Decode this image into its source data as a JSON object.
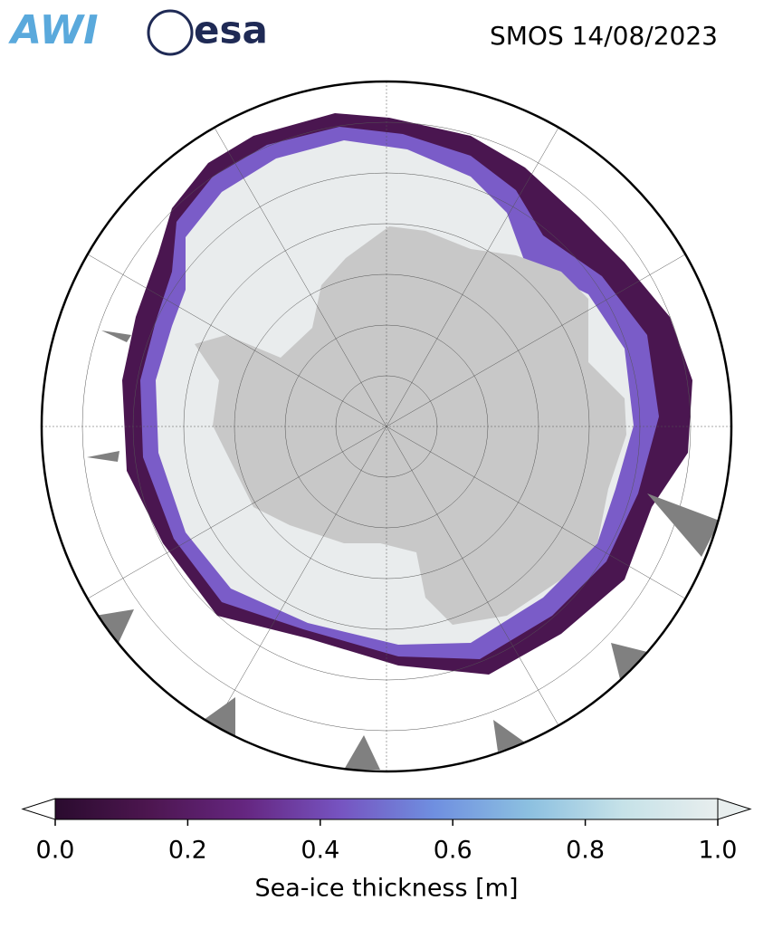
{
  "header": {
    "logos": [
      "AWI",
      "esa"
    ],
    "title": "SMOS 14/08/2023"
  },
  "colorbar": {
    "label": "Sea-ice thickness [m]",
    "lim": [
      0,
      1
    ],
    "ticks": [
      {
        "value": 0,
        "label": "0.0"
      },
      0.2,
      0.4,
      0.6,
      0.8,
      {
        "value": 1,
        "label": "1.0"
      }
    ],
    "colormap": [
      "#2a0b2e",
      "#4d1650",
      "#652680",
      "#7653c0",
      "#6f8fe0",
      "#8cc0e0",
      "#c6e2e8",
      "#e8eeee"
    ]
  }
}
